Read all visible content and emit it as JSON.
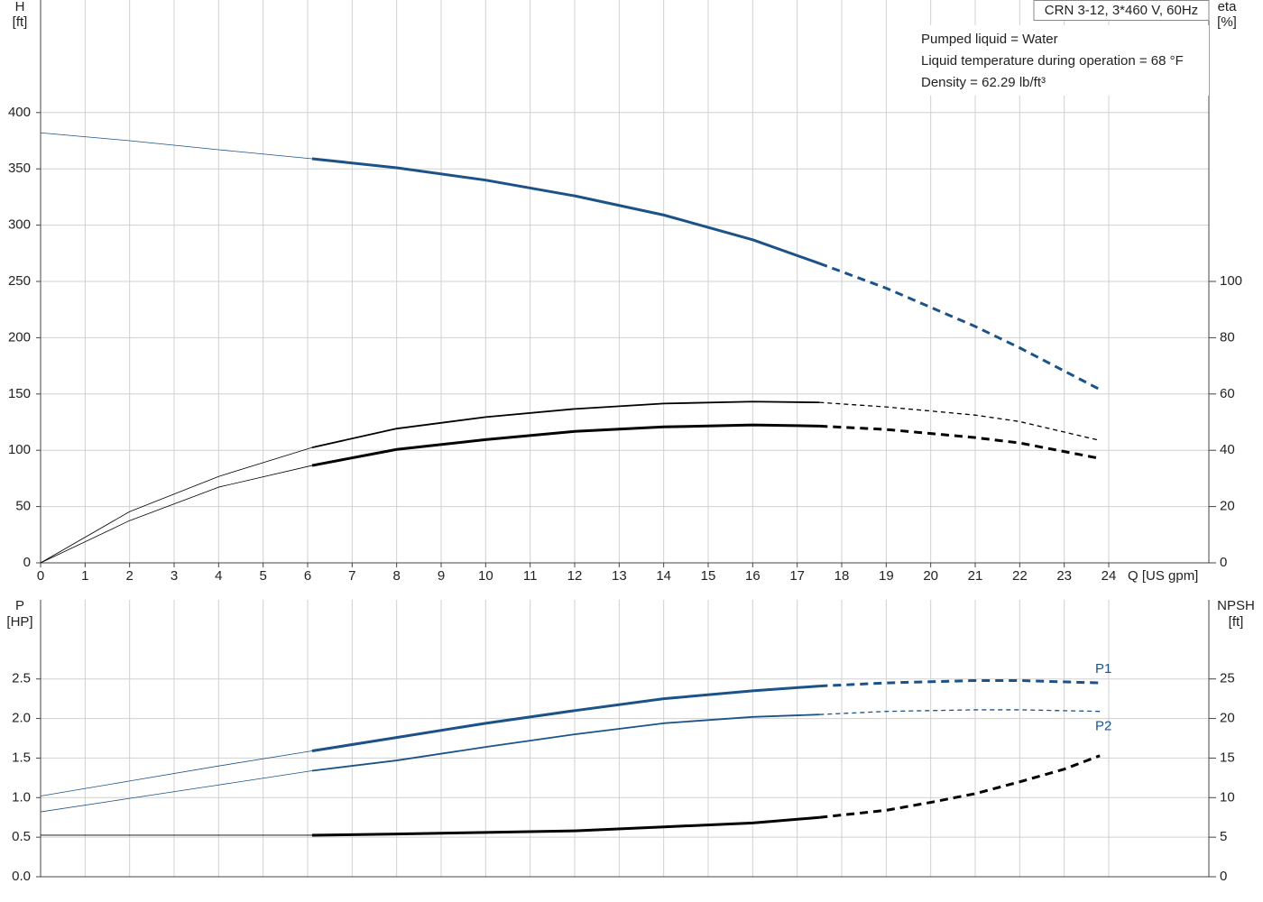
{
  "chart_data": [
    {
      "type": "line",
      "title": "CRN 3-12, 3*460 V, 60Hz",
      "annotations": [
        "Pumped liquid = Water",
        "Liquid temperature during operation = 68 °F",
        "Density = 62.29 lb/ft³"
      ],
      "ylabel": "H",
      "ylabel_unit": "[ft]",
      "y2label": "eta",
      "y2label_unit": "[%]",
      "xlabel": "Q [US gpm]",
      "xlim": [
        0,
        26.25
      ],
      "xticks": [
        0,
        1,
        2,
        3,
        4,
        5,
        6,
        7,
        8,
        9,
        10,
        11,
        12,
        13,
        14,
        15,
        16,
        17,
        18,
        19,
        20,
        21,
        22,
        23,
        24
      ],
      "show_xtick_labels": true,
      "ylim": [
        0,
        500
      ],
      "yticks": [
        0,
        50,
        100,
        150,
        200,
        250,
        300,
        350,
        400
      ],
      "y2lim": [
        0,
        200
      ],
      "y2ticks": [
        0,
        20,
        40,
        60,
        80,
        100
      ],
      "grid": true,
      "curves": [
        {
          "color": "#1b5288",
          "axis": "y",
          "pieces": [
            {
              "style": "thin",
              "x": [
                0,
                2,
                4,
                6.1
              ],
              "values": [
                382,
                375,
                367,
                359
              ]
            },
            {
              "style": "thick",
              "x": [
                6.1,
                8,
                10,
                12,
                14,
                16,
                17.5
              ],
              "values": [
                359,
                351,
                340,
                326,
                309,
                287,
                266
              ]
            },
            {
              "style": "dashed-thick",
              "x": [
                17.5,
                19,
                20,
                21,
                22,
                23.8
              ],
              "values": [
                266,
                244,
                227,
                210,
                191,
                154
              ]
            }
          ]
        },
        {
          "color": "#000000",
          "axis": "y2",
          "pieces": [
            {
              "style": "thin",
              "x": [
                0,
                2,
                4,
                6.1
              ],
              "values": [
                0,
                18.2,
                30.7,
                41
              ]
            },
            {
              "style": "medium",
              "x": [
                6.1,
                8,
                10,
                12,
                14,
                16,
                17.5
              ],
              "values": [
                41,
                47.7,
                51.8,
                54.7,
                56.6,
                57.3,
                57
              ]
            },
            {
              "style": "dashed-thin",
              "x": [
                17.5,
                19,
                21,
                22,
                23.8
              ],
              "values": [
                57,
                55.4,
                52.5,
                50.2,
                43.5
              ]
            }
          ]
        },
        {
          "color": "#000000",
          "axis": "y2",
          "pieces": [
            {
              "style": "thin",
              "x": [
                0,
                2,
                4,
                6.1
              ],
              "values": [
                0,
                15,
                26.9,
                34.6
              ]
            },
            {
              "style": "thick",
              "x": [
                6.1,
                8,
                10,
                12,
                14,
                16,
                17.5
              ],
              "values": [
                34.6,
                40.3,
                43.8,
                46.7,
                48.3,
                49,
                48.6
              ]
            },
            {
              "style": "dashed-thick",
              "x": [
                17.5,
                19,
                21,
                22,
                23.8
              ],
              "values": [
                48.6,
                47.4,
                44.5,
                42.6,
                37.1
              ]
            }
          ]
        }
      ]
    },
    {
      "type": "line",
      "ylabel": "P",
      "ylabel_unit": "[HP]",
      "y2label": "NPSH",
      "y2label_unit": "[ft]",
      "xlim": [
        0,
        26.25
      ],
      "xticks": [
        0,
        1,
        2,
        3,
        4,
        5,
        6,
        7,
        8,
        9,
        10,
        11,
        12,
        13,
        14,
        15,
        16,
        17,
        18,
        19,
        20,
        21,
        22,
        23,
        24
      ],
      "show_xtick_labels": false,
      "ylim": [
        0,
        3.5
      ],
      "yticks": [
        {
          "value": 0,
          "label": "0.0"
        },
        0.5,
        {
          "value": 1,
          "label": "1.0"
        },
        1.5,
        {
          "value": 2,
          "label": "2.0"
        },
        2.5
      ],
      "y2lim": [
        0,
        35
      ],
      "y2ticks": [
        0,
        5,
        10,
        15,
        20,
        25
      ],
      "grid": true,
      "curves": [
        {
          "name": "P1",
          "label_side": "above",
          "color": "#1b5288",
          "axis": "y",
          "pieces": [
            {
              "style": "thin",
              "x": [
                0,
                2,
                4,
                6.1
              ],
              "values": [
                1.02,
                1.21,
                1.4,
                1.59
              ]
            },
            {
              "style": "thick",
              "x": [
                6.1,
                8,
                10,
                12,
                14,
                16,
                17.5
              ],
              "values": [
                1.59,
                1.76,
                1.94,
                2.1,
                2.25,
                2.35,
                2.41
              ]
            },
            {
              "style": "dashed-thick",
              "x": [
                17.5,
                19,
                21,
                22,
                23.8
              ],
              "values": [
                2.41,
                2.45,
                2.48,
                2.48,
                2.45
              ]
            }
          ]
        },
        {
          "name": "P2",
          "label_side": "below",
          "color": "#1b5288",
          "axis": "y",
          "pieces": [
            {
              "style": "thin",
              "x": [
                0,
                2,
                4,
                6.1
              ],
              "values": [
                0.82,
                0.99,
                1.16,
                1.34
              ]
            },
            {
              "style": "medium",
              "x": [
                6.1,
                8,
                10,
                12,
                14,
                16,
                17.5
              ],
              "values": [
                1.34,
                1.47,
                1.64,
                1.8,
                1.94,
                2.02,
                2.05
              ]
            },
            {
              "style": "dashed-thin",
              "x": [
                17.5,
                19,
                21,
                22,
                23.8
              ],
              "values": [
                2.05,
                2.09,
                2.11,
                2.11,
                2.09
              ]
            }
          ]
        },
        {
          "color": "#000000",
          "axis": "y2",
          "pieces": [
            {
              "style": "thin",
              "x": [
                0,
                2,
                4,
                6.1
              ],
              "values": [
                5.25,
                5.25,
                5.25,
                5.25
              ]
            },
            {
              "style": "thick",
              "x": [
                6.1,
                8,
                10,
                12,
                14,
                16,
                17.5
              ],
              "values": [
                5.25,
                5.4,
                5.6,
                5.8,
                6.3,
                6.8,
                7.5
              ]
            },
            {
              "style": "dashed-thick",
              "x": [
                17.5,
                19,
                20,
                21,
                22,
                23,
                23.8
              ],
              "values": [
                7.5,
                8.4,
                9.4,
                10.5,
                12,
                13.6,
                15.3
              ]
            }
          ]
        }
      ]
    }
  ]
}
